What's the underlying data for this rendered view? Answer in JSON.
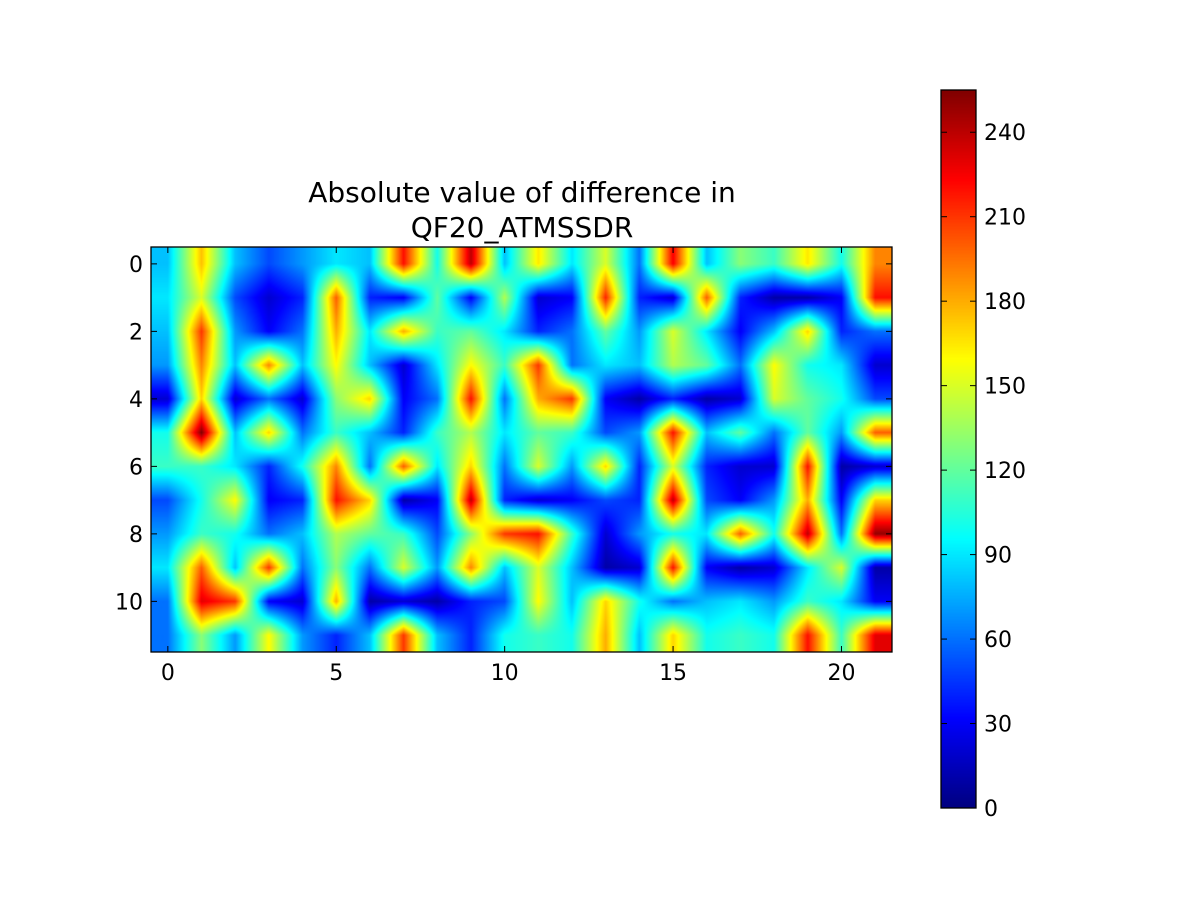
{
  "chart_data": {
    "type": "heatmap",
    "title": "Absolute value of difference in\nQF20_ATMSSDR",
    "title_lines": [
      "Absolute value of difference in",
      "QF20_ATMSSDR"
    ],
    "xlabel": "",
    "ylabel": "",
    "xlim": [
      -0.5,
      21.5
    ],
    "ylim": [
      11.5,
      -0.5
    ],
    "x_ticks": [
      0,
      5,
      10,
      15,
      20
    ],
    "y_ticks": [
      0,
      2,
      4,
      6,
      8,
      10
    ],
    "colormap": "jet",
    "interpolation": "bilinear",
    "color_range": [
      0,
      255
    ],
    "colorbar": {
      "location": "right",
      "ticks": [
        0,
        30,
        60,
        90,
        120,
        150,
        180,
        210,
        240
      ]
    },
    "rows": 12,
    "cols": 22,
    "values": [
      [
        80,
        175,
        80,
        50,
        70,
        90,
        80,
        220,
        100,
        240,
        80,
        165,
        90,
        150,
        60,
        225,
        80,
        130,
        110,
        165,
        100,
        190
      ],
      [
        90,
        150,
        50,
        20,
        40,
        200,
        40,
        30,
        120,
        30,
        140,
        20,
        30,
        215,
        40,
        20,
        200,
        40,
        10,
        10,
        30,
        220
      ],
      [
        80,
        210,
        70,
        30,
        60,
        180,
        90,
        180,
        110,
        120,
        90,
        40,
        60,
        120,
        70,
        150,
        90,
        30,
        80,
        170,
        40,
        60
      ],
      [
        70,
        190,
        80,
        190,
        80,
        160,
        80,
        20,
        90,
        160,
        110,
        210,
        60,
        90,
        80,
        140,
        120,
        60,
        160,
        100,
        90,
        20
      ],
      [
        20,
        170,
        20,
        60,
        20,
        130,
        170,
        30,
        60,
        220,
        60,
        180,
        210,
        30,
        10,
        40,
        10,
        20,
        150,
        120,
        100,
        50
      ],
      [
        100,
        255,
        80,
        170,
        60,
        110,
        80,
        40,
        110,
        140,
        90,
        120,
        110,
        50,
        70,
        220,
        80,
        120,
        60,
        120,
        70,
        200
      ],
      [
        110,
        110,
        90,
        40,
        100,
        190,
        60,
        200,
        90,
        170,
        60,
        150,
        70,
        170,
        40,
        150,
        40,
        20,
        20,
        220,
        10,
        20
      ],
      [
        50,
        100,
        160,
        30,
        40,
        220,
        170,
        10,
        30,
        240,
        40,
        20,
        30,
        50,
        40,
        240,
        50,
        30,
        70,
        180,
        30,
        170
      ],
      [
        70,
        110,
        100,
        60,
        80,
        140,
        120,
        110,
        50,
        130,
        210,
        220,
        110,
        20,
        70,
        100,
        90,
        200,
        100,
        240,
        60,
        250
      ],
      [
        90,
        200,
        80,
        210,
        60,
        130,
        60,
        150,
        70,
        190,
        80,
        150,
        80,
        10,
        20,
        220,
        30,
        10,
        20,
        90,
        150,
        10
      ],
      [
        60,
        230,
        210,
        30,
        20,
        180,
        10,
        20,
        10,
        40,
        50,
        160,
        80,
        170,
        100,
        60,
        80,
        90,
        70,
        110,
        90,
        30
      ],
      [
        60,
        130,
        70,
        160,
        70,
        40,
        80,
        210,
        80,
        40,
        100,
        110,
        100,
        180,
        80,
        170,
        100,
        110,
        100,
        220,
        110,
        230
      ]
    ]
  },
  "colors": {
    "axes_edge": "#000000",
    "background": "#ffffff"
  }
}
